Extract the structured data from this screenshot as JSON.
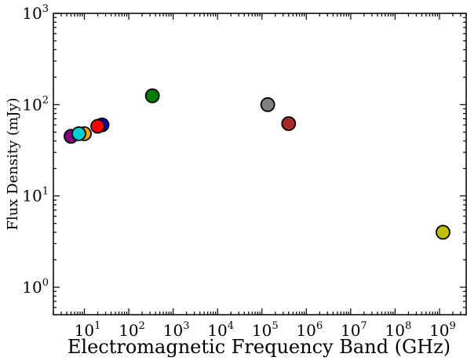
{
  "chart_data": {
    "type": "scatter",
    "title": "",
    "xlabel": "Electromagnetic Frequency Band (GHz)",
    "ylabel": "Flux Density (mJy)",
    "xscale": "log",
    "yscale": "log",
    "xlim": [
      2,
      4000000000
    ],
    "ylim": [
      0.5,
      1000
    ],
    "x_major_ticks": [
      {
        "value": 10,
        "base": "10",
        "exp": "1"
      },
      {
        "value": 100,
        "base": "10",
        "exp": "2"
      },
      {
        "value": 1000,
        "base": "10",
        "exp": "3"
      },
      {
        "value": 10000,
        "base": "10",
        "exp": "4"
      },
      {
        "value": 100000,
        "base": "10",
        "exp": "5"
      },
      {
        "value": 1000000,
        "base": "10",
        "exp": "6"
      },
      {
        "value": 10000000,
        "base": "10",
        "exp": "7"
      },
      {
        "value": 100000000,
        "base": "10",
        "exp": "8"
      },
      {
        "value": 1000000000,
        "base": "10",
        "exp": "9"
      }
    ],
    "y_major_ticks": [
      {
        "value": 1,
        "base": "10",
        "exp": "0"
      },
      {
        "value": 10,
        "base": "10",
        "exp": "1"
      },
      {
        "value": 100,
        "base": "10",
        "exp": "2"
      },
      {
        "value": 1000,
        "base": "10",
        "exp": "3"
      }
    ],
    "grid": false,
    "points": [
      {
        "x": 5,
        "y": 45,
        "color": "#800080"
      },
      {
        "x": 10,
        "y": 48,
        "color": "#ffa500"
      },
      {
        "x": 25,
        "y": 60,
        "color": "#0000cd"
      },
      {
        "x": 20,
        "y": 58,
        "color": "#ff0000"
      },
      {
        "x": 7.5,
        "y": 48,
        "color": "#00ced1"
      },
      {
        "x": 340,
        "y": 125,
        "color": "#008000"
      },
      {
        "x": 135000,
        "y": 100,
        "color": "#808080"
      },
      {
        "x": 400000,
        "y": 62,
        "color": "#a52a2a"
      },
      {
        "x": 1200000000,
        "y": 4,
        "color": "#bfbf00"
      }
    ]
  }
}
